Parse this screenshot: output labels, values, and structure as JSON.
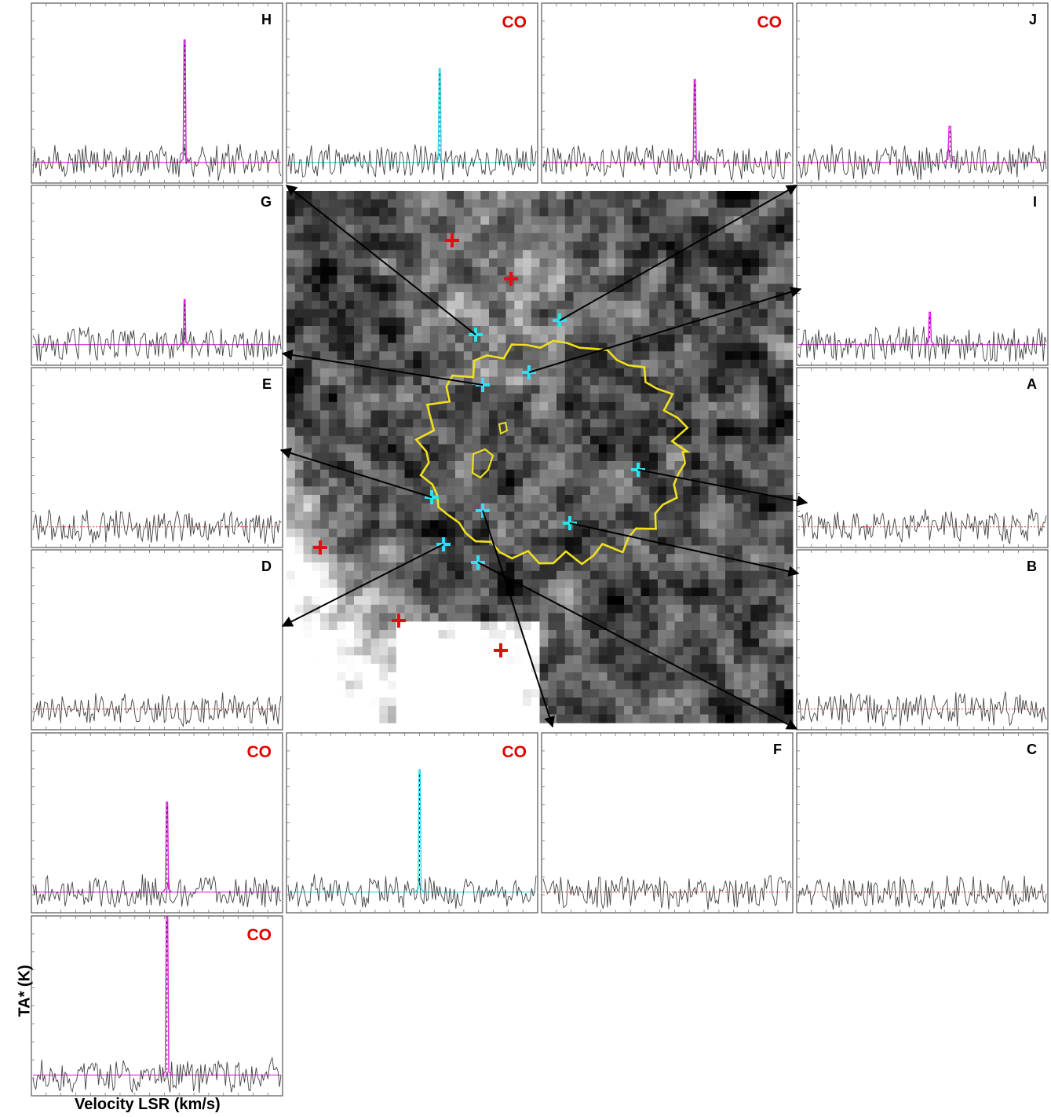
{
  "figure": {
    "xlabel": "Velocity LSR (km/s)",
    "ylabel": "TA* (K)"
  },
  "colors": {
    "noise": "#444444",
    "magenta": "#e020e0",
    "cyan": "#30d8e8",
    "baseline_magenta": "#e020e0",
    "baseline_cyan": "#30d8e8",
    "baseline_dotted": "#e04040",
    "baseline_blue": "#4060ff",
    "co_label": "#e00000",
    "letter_label": "#000000",
    "contour": "#f0e020",
    "cross_red": "#e01010",
    "cross_cyan": "#30e0f0",
    "arrow": "#000000"
  },
  "chart_data": [
    {
      "type": "line",
      "panel": "H",
      "label": "H",
      "label_color": "letter",
      "line_color": "magenta",
      "peak_pos": 0.61,
      "peak_height": 0.68,
      "peak_width": 0.006,
      "baseline": "magenta",
      "seed": 11,
      "x": [],
      "y": []
    },
    {
      "type": "line",
      "panel": "CO-top-2",
      "label": "CO",
      "label_color": "co",
      "line_color": "cyan",
      "peak_pos": 0.61,
      "peak_height": 0.52,
      "peak_width": 0.006,
      "baseline": "cyan",
      "seed": 12,
      "x": [],
      "y": []
    },
    {
      "type": "line",
      "panel": "CO-top-3",
      "label": "CO",
      "label_color": "co",
      "line_color": "magenta",
      "peak_pos": 0.61,
      "peak_height": 0.46,
      "peak_width": 0.006,
      "baseline": "magenta",
      "seed": 13,
      "x": [],
      "y": []
    },
    {
      "type": "line",
      "panel": "J",
      "label": "J",
      "label_color": "letter",
      "line_color": "magenta",
      "peak_pos": 0.61,
      "peak_height": 0.2,
      "peak_width": 0.008,
      "baseline": "magenta",
      "seed": 14,
      "x": [],
      "y": []
    },
    {
      "type": "line",
      "panel": "G",
      "label": "G",
      "label_color": "letter",
      "line_color": "magenta",
      "peak_pos": 0.61,
      "peak_height": 0.25,
      "peak_width": 0.005,
      "baseline": "magenta",
      "seed": 21,
      "x": [],
      "y": []
    },
    {
      "type": "line",
      "panel": "I",
      "label": "I",
      "label_color": "letter",
      "line_color": "magenta",
      "peak_pos": 0.53,
      "peak_height": 0.18,
      "peak_width": 0.006,
      "baseline": "magenta",
      "seed": 24,
      "x": [],
      "y": []
    },
    {
      "type": "line",
      "panel": "E",
      "label": "E",
      "label_color": "letter",
      "line_color": "none",
      "peak_pos": 0,
      "peak_height": 0,
      "peak_width": 0,
      "baseline": "dotted",
      "seed": 31,
      "x": [],
      "y": []
    },
    {
      "type": "line",
      "panel": "A",
      "label": "A",
      "label_color": "letter",
      "line_color": "none",
      "peak_pos": 0,
      "peak_height": 0,
      "peak_width": 0,
      "baseline": "dotted",
      "seed": 34,
      "x": [],
      "y": []
    },
    {
      "type": "line",
      "panel": "D",
      "label": "D",
      "label_color": "letter",
      "line_color": "none",
      "peak_pos": 0,
      "peak_height": 0,
      "peak_width": 0,
      "baseline": "dotted",
      "seed": 41,
      "x": [],
      "y": []
    },
    {
      "type": "line",
      "panel": "B",
      "label": "B",
      "label_color": "letter",
      "line_color": "none",
      "peak_pos": 0,
      "peak_height": 0,
      "peak_width": 0,
      "baseline": "dotted",
      "seed": 44,
      "x": [],
      "y": []
    },
    {
      "type": "line",
      "panel": "CO-row5-1",
      "label": "CO",
      "label_color": "co",
      "line_color": "magenta",
      "peak_pos": 0.54,
      "peak_height": 0.5,
      "peak_width": 0.006,
      "baseline": "magenta",
      "seed": 51,
      "x": [],
      "y": []
    },
    {
      "type": "line",
      "panel": "CO-row5-2",
      "label": "CO",
      "label_color": "co",
      "line_color": "cyan",
      "peak_pos": 0.53,
      "peak_height": 0.68,
      "peak_width": 0.006,
      "baseline": "cyan",
      "seed": 52,
      "x": [],
      "y": []
    },
    {
      "type": "line",
      "panel": "F",
      "label": "F",
      "label_color": "letter",
      "line_color": "none",
      "peak_pos": 0,
      "peak_height": 0,
      "peak_width": 0,
      "baseline": "dotted",
      "seed": 53,
      "x": [],
      "y": []
    },
    {
      "type": "line",
      "panel": "C",
      "label": "C",
      "label_color": "letter",
      "line_color": "none",
      "peak_pos": 0,
      "peak_height": 0,
      "peak_width": 0,
      "baseline": "dotted",
      "seed": 54,
      "x": [],
      "y": []
    },
    {
      "type": "line",
      "panel": "CO-row6-1",
      "label": "CO",
      "label_color": "co",
      "line_color": "magenta",
      "peak_pos": 0.54,
      "peak_height": 0.88,
      "peak_width": 0.007,
      "baseline": "magenta",
      "seed": 61,
      "x": [],
      "y": []
    }
  ],
  "map": {
    "red_crosses": 6,
    "cyan_crosses": 11,
    "arrow_targets": [
      "H",
      "J",
      "G",
      "I",
      "E",
      "A",
      "D",
      "B",
      "F",
      "C"
    ]
  }
}
